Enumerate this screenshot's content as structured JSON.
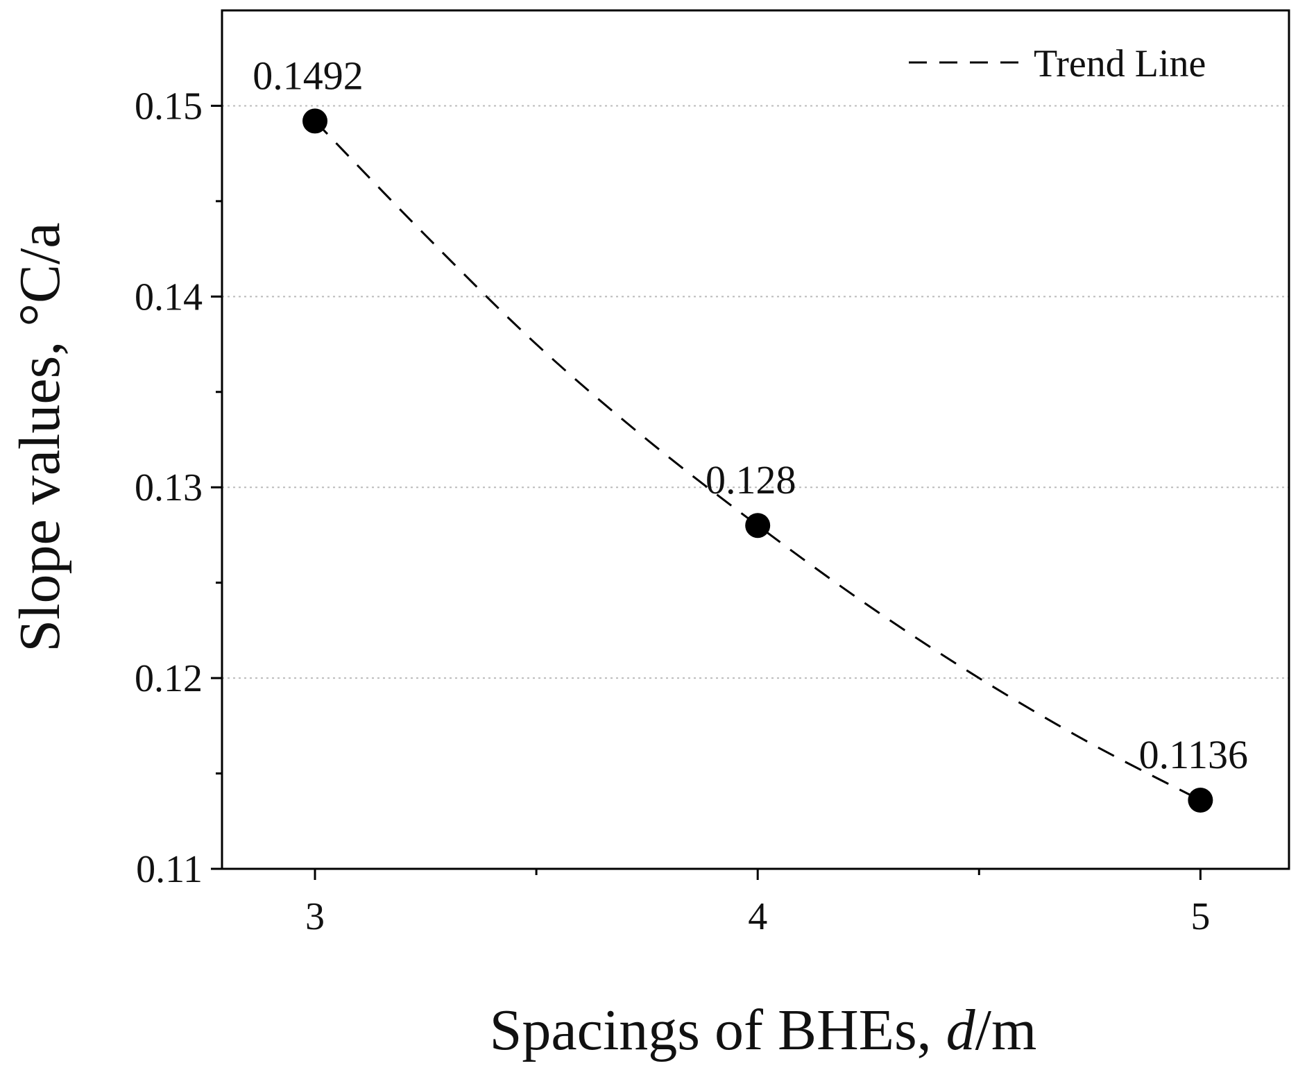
{
  "chart_data": {
    "type": "scatter",
    "title": "",
    "xlabel": "Spacings of BHEs, ",
    "xlabel_italic": "d",
    "xlabel_suffix": "/m",
    "ylabel": "Slope values, °C/a",
    "xlim": [
      2.79,
      5.2
    ],
    "ylim": [
      0.11,
      0.155
    ],
    "x_ticks": [
      3,
      4,
      5
    ],
    "x_tick_labels": [
      "3",
      "4",
      "5"
    ],
    "x_minor_ticks": [
      3.5,
      4.5
    ],
    "y_ticks": [
      0.11,
      0.12,
      0.13,
      0.14,
      0.15
    ],
    "y_tick_labels": [
      "0.11",
      "0.12",
      "0.13",
      "0.14",
      "0.15"
    ],
    "y_minor_ticks": [
      0.115,
      0.125,
      0.135,
      0.145
    ],
    "grid": "horizontal dotted at major y ticks",
    "points": [
      {
        "x": 3,
        "y": 0.1492,
        "label": "0.1492"
      },
      {
        "x": 4,
        "y": 0.128,
        "label": "0.128"
      },
      {
        "x": 5,
        "y": 0.1136,
        "label": "0.1136"
      }
    ],
    "trend": {
      "name": "Trend Line",
      "style": "dashed",
      "x": [
        3,
        3.25,
        3.5,
        3.75,
        4,
        4.25,
        4.5,
        4.75,
        5
      ],
      "y": [
        0.1492,
        0.1432,
        0.1375,
        0.1325,
        0.128,
        0.1238,
        0.12,
        0.1166,
        0.1136
      ]
    },
    "legend": {
      "placement": "top-right",
      "entries": [
        "Trend Line"
      ]
    },
    "colors": {
      "marker": "#000000",
      "line": "#000000",
      "grid": "#bbbbbb",
      "axis": "#000000"
    }
  }
}
